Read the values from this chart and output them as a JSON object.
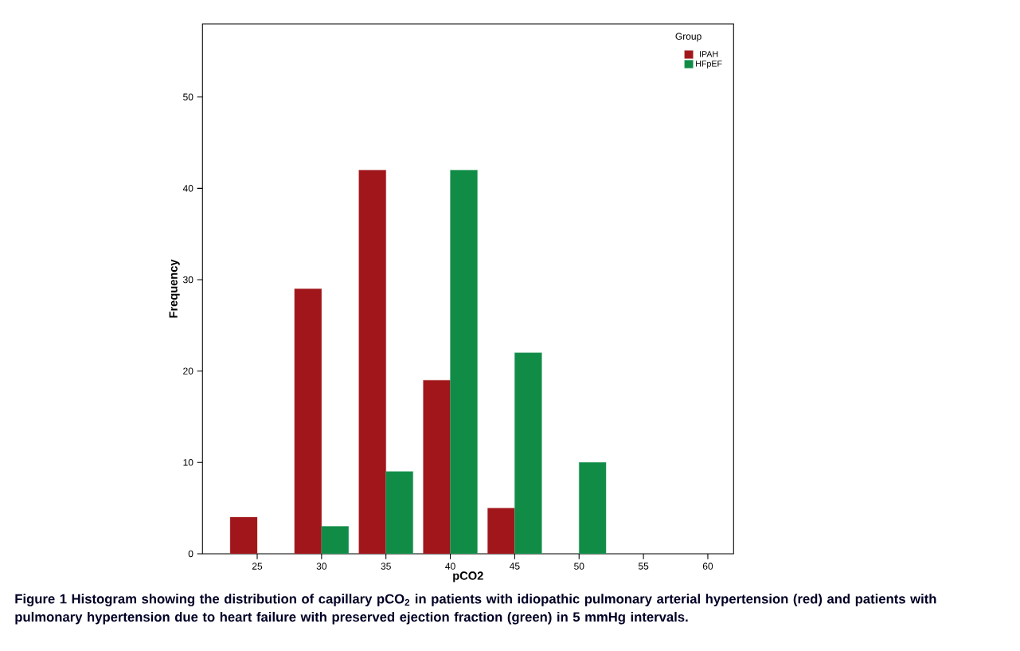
{
  "chart_data": {
    "type": "bar",
    "xlabel": "pCO2",
    "ylabel": "Frequency",
    "legend_title": "Group",
    "categories": [
      "25",
      "30",
      "35",
      "40",
      "45",
      "50",
      "55",
      "60"
    ],
    "series": [
      {
        "name": "IPAH",
        "color": "#a0161a",
        "values": [
          4,
          29,
          42,
          19,
          5,
          null,
          null,
          null
        ]
      },
      {
        "name": "HFpEF",
        "color": "#108c47",
        "values": [
          null,
          3,
          9,
          42,
          22,
          10,
          null,
          null
        ]
      }
    ],
    "ylim": [
      0,
      58
    ],
    "yticks": [
      0,
      10,
      20,
      30,
      40,
      50
    ],
    "grid": false,
    "legend": "top right",
    "annotations": [
      "**Figure 1** Histogram showing the distribution of capillary pCO$_{2}$ in patients with idiopathic pulmonary arterial hypertension (red) and patients with pulmonary hypertension due to heart failure with preserved ejection fraction (green) in 5 mmHg intervals."
    ]
  }
}
